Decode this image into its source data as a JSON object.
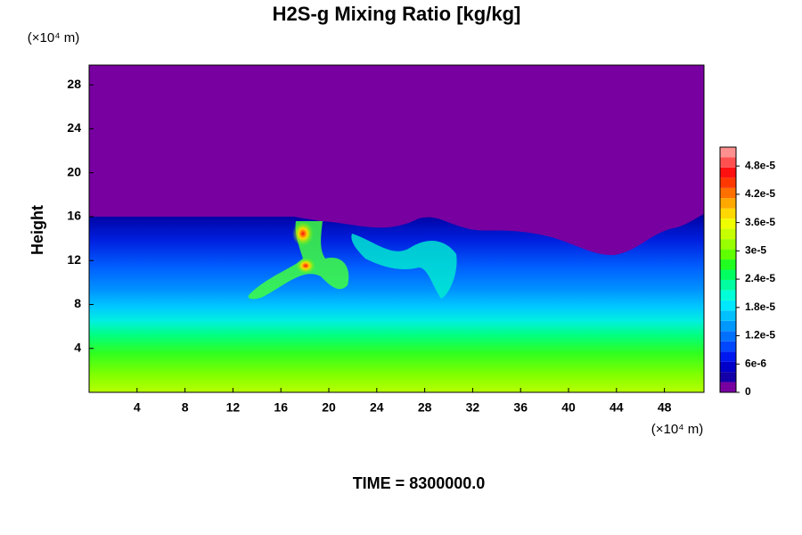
{
  "chart_data": {
    "type": "contour",
    "title": "H2S-g Mixing Ratio [kg/kg]",
    "y_label": "Height",
    "x_unit": "(×10⁴ m)",
    "y_unit": "(×10⁴ m)",
    "footer": "TIME = 8300000.0",
    "xlim": [
      0,
      51.3
    ],
    "ylim": [
      0,
      29.8
    ],
    "xticks": [
      4,
      8,
      12,
      16,
      20,
      24,
      28,
      32,
      36,
      40,
      44,
      48
    ],
    "yticks": [
      4,
      8,
      12,
      16,
      20,
      24,
      28
    ],
    "clim": [
      0,
      5.2e-05
    ],
    "cticks": [
      0,
      {
        "value": 6e-06,
        "label": "6e-6"
      },
      {
        "value": 1.2e-05,
        "label": "1.2e-5"
      },
      {
        "value": 1.8e-05,
        "label": "1.8e-5"
      },
      {
        "value": 2.4e-05,
        "label": "2.4e-5"
      },
      {
        "value": 3e-05,
        "label": "3e-5"
      },
      {
        "value": 3.6e-05,
        "label": "3.6e-5"
      },
      {
        "value": 4.2e-05,
        "label": "4.2e-5"
      },
      {
        "value": 4.8e-05,
        "label": "4.8e-5"
      }
    ],
    "colormap": [
      "#7800a0",
      "#1400a8",
      "#0000c8",
      "#0018f0",
      "#0048ff",
      "#0070ff",
      "#0098ff",
      "#00c0ff",
      "#00e8ff",
      "#00ffd8",
      "#00ffa0",
      "#00ff60",
      "#20ff20",
      "#60ff00",
      "#98ff00",
      "#c8ff00",
      "#f0ff00",
      "#ffd800",
      "#ffa800",
      "#ff7000",
      "#ff3800",
      "#ff1010",
      "#ff5050",
      "#ff9090"
    ]
  }
}
